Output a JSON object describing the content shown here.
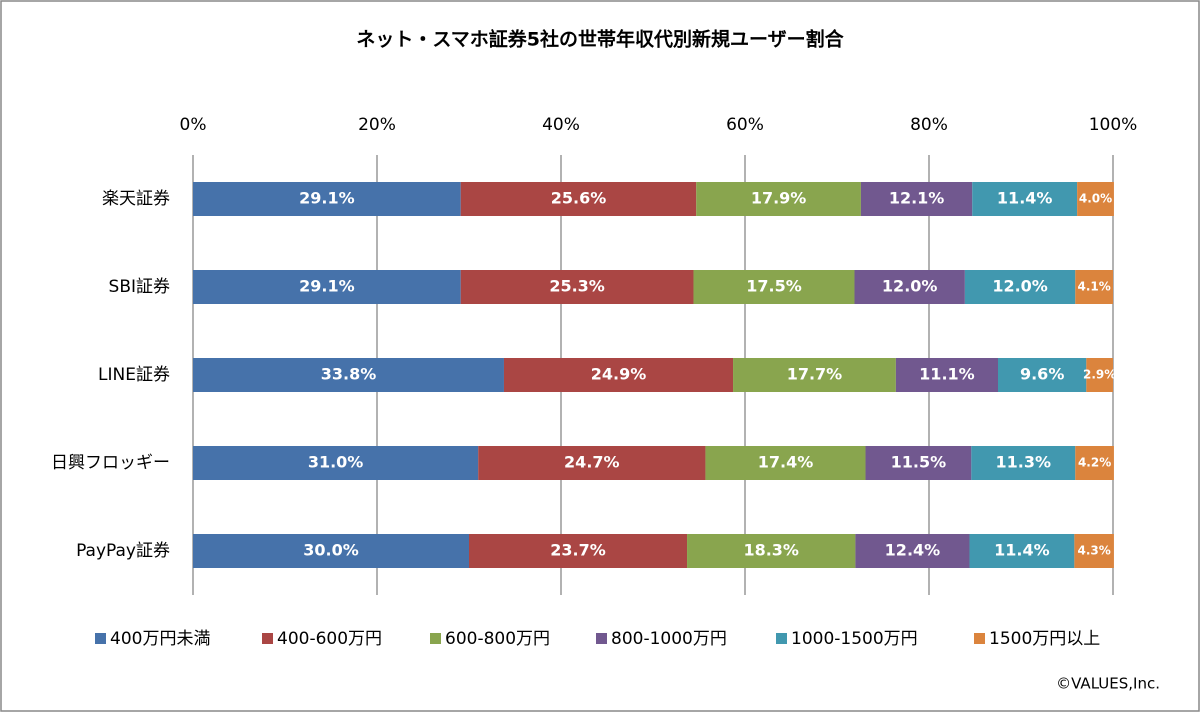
{
  "chart_data": {
    "type": "stacked-bar-horizontal",
    "title": "ネット・スマホ証券5社の世帯年収代別新規ユーザー割合",
    "credit": "©VALUES,Inc.",
    "categories": [
      "楽天証券",
      "SBI証券",
      "LINE証券",
      "日興フロッギー",
      "PayPay証券"
    ],
    "xlim": [
      0,
      100
    ],
    "xticks": [
      {
        "value": 0,
        "label": "0%"
      },
      {
        "value": 20,
        "label": "20%"
      },
      {
        "value": 40,
        "label": "40%"
      },
      {
        "value": 60,
        "label": "60%"
      },
      {
        "value": 80,
        "label": "80%"
      },
      {
        "value": 100,
        "label": "100%"
      }
    ],
    "grid": true,
    "legend": "bottom",
    "series": [
      {
        "name": "400万円未満",
        "color": "#4672aa",
        "values": [
          29.1,
          29.1,
          33.8,
          31.0,
          30.0
        ],
        "value_labels": [
          "29.1%",
          "29.1%",
          "33.8%",
          "31.0%",
          "30.0%"
        ]
      },
      {
        "name": "400-600万円",
        "color": "#aa4644",
        "values": [
          25.6,
          25.3,
          24.9,
          24.7,
          23.7
        ],
        "value_labels": [
          "25.6%",
          "25.3%",
          "24.9%",
          "24.7%",
          "23.7%"
        ]
      },
      {
        "name": "600-800万円",
        "color": "#89a54e",
        "values": [
          17.9,
          17.5,
          17.7,
          17.4,
          18.3
        ],
        "value_labels": [
          "17.9%",
          "17.5%",
          "17.7%",
          "17.4%",
          "18.3%"
        ]
      },
      {
        "name": "800-1000万円",
        "color": "#71588f",
        "values": [
          12.1,
          12.0,
          11.1,
          11.5,
          12.4
        ],
        "value_labels": [
          "12.1%",
          "12.0%",
          "11.1%",
          "11.5%",
          "12.4%"
        ]
      },
      {
        "name": "1000-1500万円",
        "color": "#4198af",
        "values": [
          11.4,
          12.0,
          9.6,
          11.3,
          11.4
        ],
        "value_labels": [
          "11.4%",
          "12.0%",
          "9.6%",
          "11.3%",
          "11.4%"
        ]
      },
      {
        "name": "1500万円以上",
        "color": "#db843d",
        "values": [
          4.0,
          4.1,
          2.9,
          4.2,
          4.3
        ],
        "value_labels": [
          "4.0%",
          "4.1%",
          "2.9%",
          "4.2%",
          "4.3%"
        ]
      }
    ]
  }
}
